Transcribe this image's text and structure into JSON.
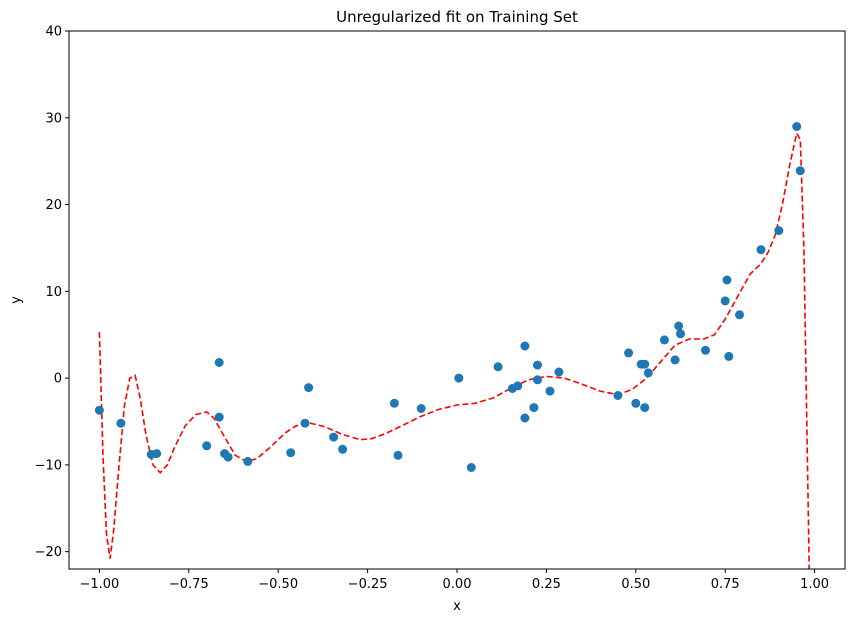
{
  "chart_data": {
    "type": "scatter",
    "title": "Unregularized fit on Training Set",
    "xlabel": "x",
    "ylabel": "y",
    "xlim": [
      -1.085,
      1.085
    ],
    "ylim": [
      -22,
      40
    ],
    "xticks": [
      -1.0,
      -0.75,
      -0.5,
      -0.25,
      0.0,
      0.25,
      0.5,
      0.75,
      1.0
    ],
    "xtick_labels": [
      "−1.00",
      "−0.75",
      "−0.50",
      "−0.25",
      "0.00",
      "0.25",
      "0.50",
      "0.75",
      "1.00"
    ],
    "yticks": [
      -20,
      -10,
      0,
      10,
      20,
      30,
      40
    ],
    "ytick_labels": [
      "−20",
      "−10",
      "0",
      "10",
      "20",
      "30",
      "40"
    ],
    "grid": false,
    "series": [
      {
        "kind": "scatter",
        "color": "#1f77b4",
        "points": [
          [
            -1.0,
            -3.7
          ],
          [
            -0.94,
            -5.2
          ],
          [
            -0.855,
            -8.8
          ],
          [
            -0.84,
            -8.7
          ],
          [
            -0.7,
            -7.8
          ],
          [
            -0.665,
            1.8
          ],
          [
            -0.665,
            -4.5
          ],
          [
            -0.65,
            -8.7
          ],
          [
            -0.64,
            -9.1
          ],
          [
            -0.585,
            -9.6
          ],
          [
            -0.465,
            -8.6
          ],
          [
            -0.425,
            -5.2
          ],
          [
            -0.415,
            -1.1
          ],
          [
            -0.345,
            -6.8
          ],
          [
            -0.32,
            -8.2
          ],
          [
            -0.175,
            -2.9
          ],
          [
            -0.165,
            -8.9
          ],
          [
            -0.1,
            -3.5
          ],
          [
            0.005,
            0.0
          ],
          [
            0.04,
            -10.3
          ],
          [
            0.115,
            1.3
          ],
          [
            0.155,
            -1.2
          ],
          [
            0.17,
            -0.9
          ],
          [
            0.19,
            3.7
          ],
          [
            0.19,
            -4.6
          ],
          [
            0.215,
            -3.4
          ],
          [
            0.225,
            1.5
          ],
          [
            0.225,
            -0.2
          ],
          [
            0.26,
            -1.5
          ],
          [
            0.285,
            0.7
          ],
          [
            0.45,
            -2.0
          ],
          [
            0.48,
            2.9
          ],
          [
            0.5,
            -2.9
          ],
          [
            0.515,
            1.6
          ],
          [
            0.525,
            1.6
          ],
          [
            0.525,
            -3.4
          ],
          [
            0.535,
            0.6
          ],
          [
            0.58,
            4.4
          ],
          [
            0.61,
            2.1
          ],
          [
            0.62,
            6.0
          ],
          [
            0.625,
            5.1
          ],
          [
            0.695,
            3.2
          ],
          [
            0.75,
            8.9
          ],
          [
            0.755,
            11.3
          ],
          [
            0.76,
            2.5
          ],
          [
            0.79,
            7.3
          ],
          [
            0.9,
            17.0
          ],
          [
            0.85,
            14.8
          ],
          [
            0.95,
            29.0
          ],
          [
            0.96,
            23.9
          ]
        ]
      },
      {
        "kind": "line",
        "style": "dashed",
        "color": "#ff0000",
        "points": [
          [
            -1.0,
            5.3
          ],
          [
            -0.99,
            -9.0
          ],
          [
            -0.98,
            -18.0
          ],
          [
            -0.97,
            -20.8
          ],
          [
            -0.96,
            -17.5
          ],
          [
            -0.945,
            -10.0
          ],
          [
            -0.93,
            -3.2
          ],
          [
            -0.915,
            0.0
          ],
          [
            -0.9,
            0.3
          ],
          [
            -0.885,
            -2.5
          ],
          [
            -0.87,
            -6.5
          ],
          [
            -0.85,
            -10.0
          ],
          [
            -0.83,
            -10.9
          ],
          [
            -0.81,
            -10.0
          ],
          [
            -0.79,
            -8.0
          ],
          [
            -0.76,
            -5.5
          ],
          [
            -0.73,
            -4.2
          ],
          [
            -0.7,
            -3.9
          ],
          [
            -0.68,
            -4.6
          ],
          [
            -0.65,
            -6.8
          ],
          [
            -0.62,
            -8.9
          ],
          [
            -0.59,
            -9.6
          ],
          [
            -0.56,
            -9.3
          ],
          [
            -0.52,
            -7.9
          ],
          [
            -0.48,
            -6.3
          ],
          [
            -0.45,
            -5.5
          ],
          [
            -0.41,
            -5.2
          ],
          [
            -0.37,
            -5.6
          ],
          [
            -0.32,
            -6.5
          ],
          [
            -0.27,
            -7.1
          ],
          [
            -0.24,
            -7.0
          ],
          [
            -0.2,
            -6.4
          ],
          [
            -0.15,
            -5.4
          ],
          [
            -0.1,
            -4.4
          ],
          [
            -0.05,
            -3.6
          ],
          [
            0.0,
            -3.1
          ],
          [
            0.05,
            -2.9
          ],
          [
            0.1,
            -2.3
          ],
          [
            0.15,
            -1.2
          ],
          [
            0.2,
            -0.2
          ],
          [
            0.25,
            0.2
          ],
          [
            0.3,
            0.0
          ],
          [
            0.35,
            -0.7
          ],
          [
            0.4,
            -1.5
          ],
          [
            0.45,
            -1.9
          ],
          [
            0.49,
            -1.3
          ],
          [
            0.53,
            0.0
          ],
          [
            0.57,
            1.9
          ],
          [
            0.61,
            3.8
          ],
          [
            0.65,
            4.5
          ],
          [
            0.69,
            4.5
          ],
          [
            0.72,
            5.0
          ],
          [
            0.75,
            6.8
          ],
          [
            0.79,
            9.8
          ],
          [
            0.82,
            12.0
          ],
          [
            0.85,
            13.2
          ],
          [
            0.87,
            14.5
          ],
          [
            0.89,
            16.5
          ],
          [
            0.91,
            20.0
          ],
          [
            0.93,
            24.5
          ],
          [
            0.95,
            28.2
          ],
          [
            0.96,
            27.5
          ],
          [
            0.97,
            15.0
          ],
          [
            0.98,
            -10.0
          ],
          [
            0.985,
            -22.0
          ]
        ]
      }
    ]
  }
}
